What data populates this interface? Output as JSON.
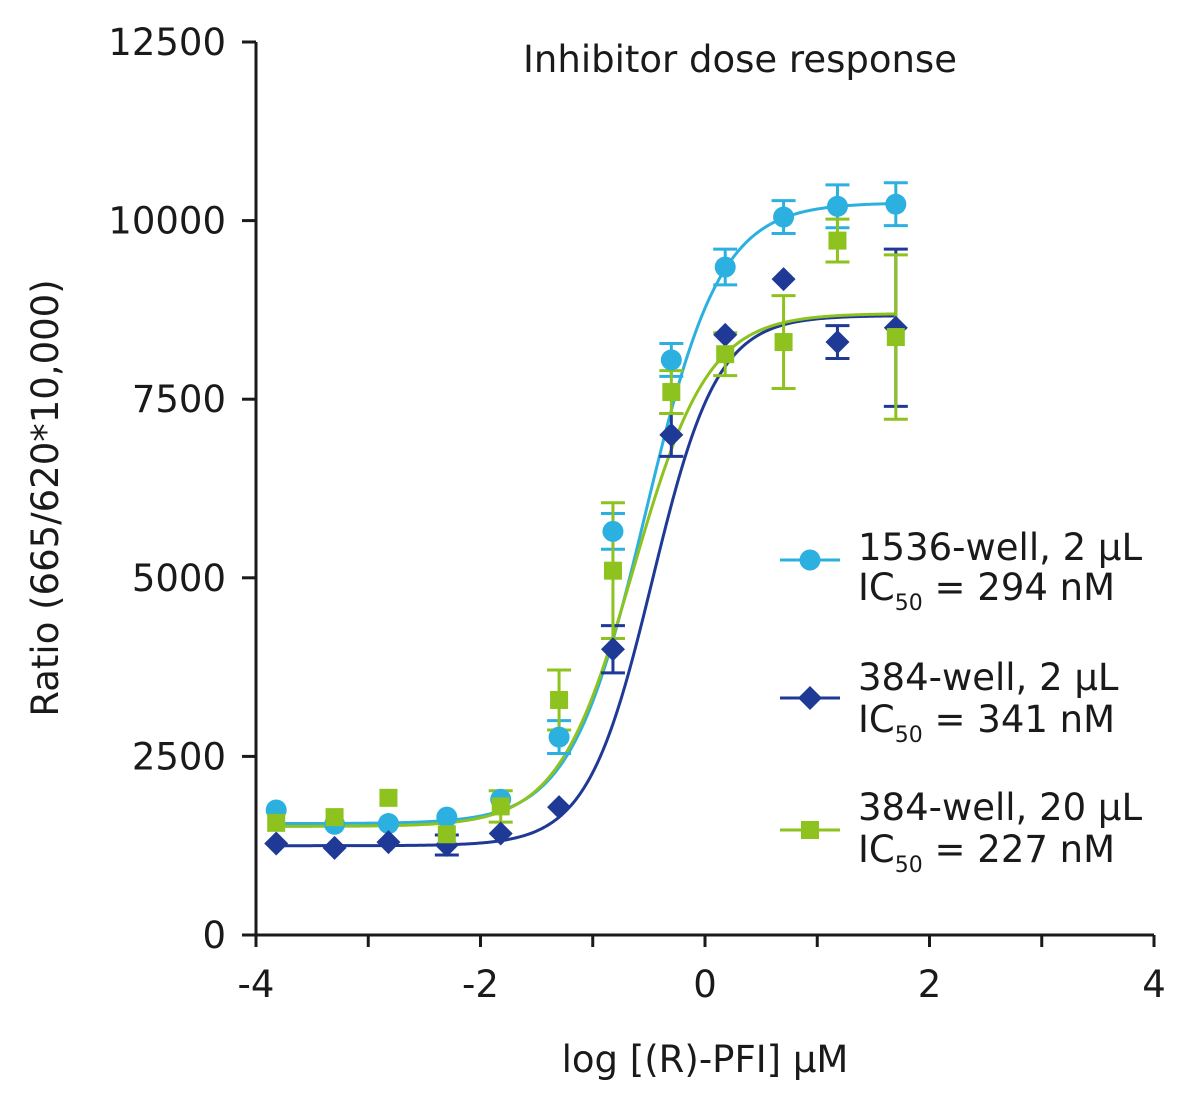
{
  "chart_data": {
    "type": "scatter",
    "title": "Inhibitor dose response",
    "xlabel": "log [(R)-PFI] μM",
    "ylabel": "Ratio (665/620*10,000)",
    "xlim": [
      -4,
      4
    ],
    "ylim": [
      0,
      12500
    ],
    "x_ticks": [
      -4,
      -2,
      0,
      2,
      4
    ],
    "x_tick_labels": [
      "-4",
      "-2",
      "0",
      "2",
      "4"
    ],
    "y_ticks": [
      0,
      2500,
      5000,
      7500,
      10000,
      12500
    ],
    "y_tick_labels": [
      "0",
      "2500",
      "5000",
      "7500",
      "10000",
      "12500"
    ],
    "grid": false,
    "legend_position": "right",
    "series": [
      {
        "name": "1536-well, 2 μL",
        "ic50_label": "IC",
        "ic50_sub": "50",
        "ic50_value": " = 294 nM",
        "color": "#2bb0e0",
        "marker": "circle",
        "x": [
          -3.82,
          -3.3,
          -2.82,
          -2.3,
          -1.82,
          -1.3,
          -0.82,
          -0.3,
          0.18,
          0.7,
          1.18,
          1.7
        ],
        "y": [
          1750,
          1550,
          1560,
          1650,
          1900,
          2770,
          5650,
          8050,
          9350,
          10050,
          10200,
          10230
        ],
        "err": [
          0,
          0,
          0,
          0,
          0,
          230,
          250,
          230,
          250,
          230,
          300,
          300
        ],
        "fit": {
          "bottom": 1560,
          "top": 10250,
          "logIC50": -0.53,
          "hill": 1.3
        }
      },
      {
        "name": "384-well, 2 μL",
        "ic50_label": "IC",
        "ic50_sub": "50",
        "ic50_value": " = 341 nM",
        "color": "#1f3996",
        "marker": "diamond",
        "x": [
          -3.82,
          -3.3,
          -2.82,
          -2.3,
          -1.82,
          -1.3,
          -0.82,
          -0.3,
          0.18,
          0.7,
          1.18,
          1.7
        ],
        "y": [
          1280,
          1220,
          1300,
          1260,
          1420,
          1790,
          4000,
          7000,
          8400,
          9180,
          8300,
          8500
        ],
        "err": [
          0,
          0,
          0,
          140,
          0,
          0,
          330,
          300,
          0,
          0,
          230,
          1100
        ],
        "fit": {
          "bottom": 1250,
          "top": 8670,
          "logIC50": -0.47,
          "hill": 1.5
        }
      },
      {
        "name": "384-well, 20 μL",
        "ic50_label": "IC",
        "ic50_sub": "50",
        "ic50_value": " = 227 nM",
        "color": "#8dc21f",
        "marker": "square",
        "x": [
          -3.82,
          -3.3,
          -2.82,
          -2.3,
          -1.82,
          -1.3,
          -0.82,
          -0.3,
          0.18,
          0.7,
          1.18,
          1.7
        ],
        "y": [
          1570,
          1650,
          1920,
          1410,
          1800,
          3290,
          5100,
          7600,
          8130,
          8300,
          9720,
          8370
        ],
        "err": [
          0,
          0,
          0,
          0,
          220,
          420,
          950,
          300,
          300,
          650,
          300,
          1150
        ],
        "fit": {
          "bottom": 1520,
          "top": 8700,
          "logIC50": -0.64,
          "hill": 1.3
        }
      }
    ]
  }
}
